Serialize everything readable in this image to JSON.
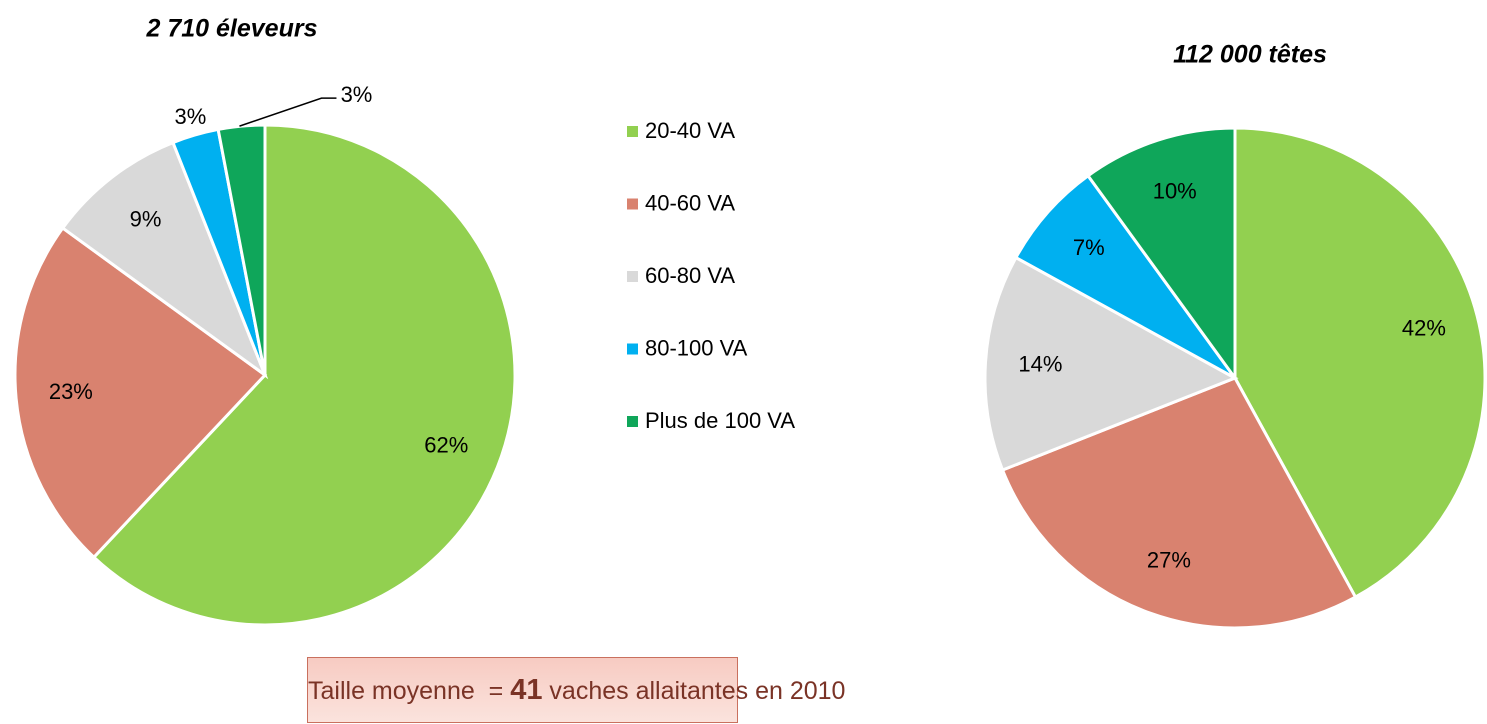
{
  "chart_data": [
    {
      "type": "pie",
      "title": "2 710 éleveurs",
      "values": [
        62,
        23,
        9,
        3,
        3
      ],
      "value_labels": [
        "62%",
        "23%",
        "9%",
        "3%",
        "3%"
      ]
    },
    {
      "type": "pie",
      "title": "112 000 têtes",
      "values": [
        42,
        27,
        14,
        7,
        10
      ],
      "value_labels": [
        "42%",
        "27%",
        "14%",
        "7%",
        "10%"
      ]
    }
  ],
  "legend": {
    "categories": [
      "20-40 VA",
      "40-60 VA",
      "60-80 VA",
      "80-100 VA",
      "Plus de 100 VA"
    ],
    "colors": [
      "#92d050",
      "#d9826f",
      "#d9d9d9",
      "#00b0f0",
      "#0fa65a"
    ]
  },
  "note": {
    "text_before": "Taille moyenne  = ",
    "value": 41,
    "text_after": " vaches allaitantes en 2010"
  }
}
